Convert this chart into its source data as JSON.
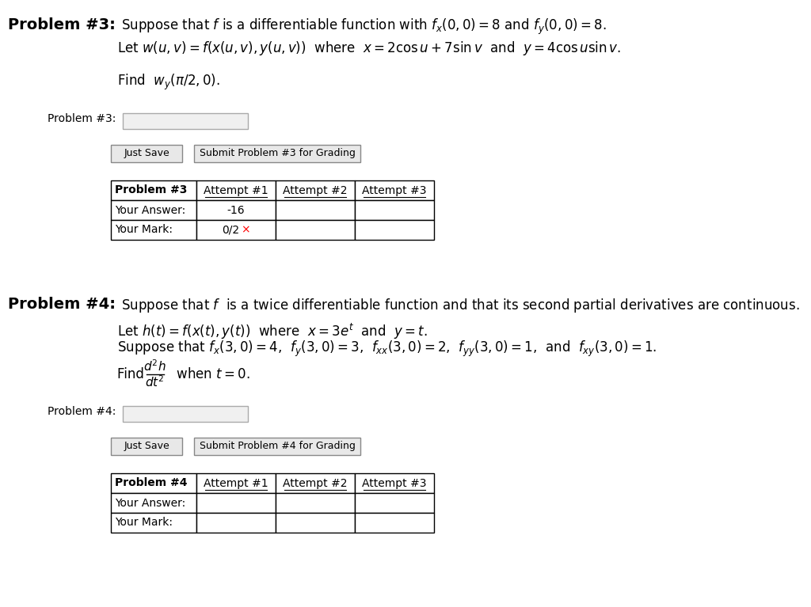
{
  "bg_color": "#ffffff",
  "fig_width": 10.24,
  "fig_height": 7.67,
  "dpi": 100,
  "problem3": {
    "header_bold": "Problem #3:",
    "header_text": " Suppose that $f$ is a differentiable function with $f_x(0,0) = 8$ and $f_y(0,0) = 8$.",
    "line2": "Let $w(u, v) = f(x(u, v), y(u, v))$  where  $x = 2\\cos u + 7\\sin v$  and  $y = 4\\cos u \\sin v$.",
    "line3": "Find  $w_y(\\pi/2, 0)$.",
    "label": "Problem #3:",
    "buttons": [
      "Just Save",
      "Submit Problem #3 for Grading"
    ],
    "table_header": [
      "Problem #3",
      "Attempt #1",
      "Attempt #2",
      "Attempt #3"
    ],
    "row1": [
      "Your Answer:",
      "-16",
      "",
      ""
    ],
    "row2_prefix": "0/2",
    "row2_suffix": "×"
  },
  "problem4": {
    "header_bold": "Problem #4:",
    "header_text": " Suppose that $f$  is a twice differentiable function and that its second partial derivatives are continuous.",
    "line2": "Let $h(t) = f(x(t), y(t))$  where  $x = 3e^t$  and  $y = t$.",
    "line3": "Suppose that $f_x(3,0) = 4$,  $f_y(3,0) = 3$,  $f_{xx}(3,0) = 2$,  $f_{yy}(3,0) = 1$,  and  $f_{xy}(3,0) = 1$.",
    "line4_prefix": "Find  ",
    "line4_frac_num": "d^{2}h",
    "line4_frac_den": "dt^{2}",
    "line4_suffix": "  when $t = 0$.",
    "label": "Problem #4:",
    "buttons": [
      "Just Save",
      "Submit Problem #4 for Grading"
    ],
    "table_header": [
      "Problem #4",
      "Attempt #1",
      "Attempt #2",
      "Attempt #3"
    ],
    "row1": [
      "Your Answer:",
      "",
      "",
      ""
    ],
    "row2": [
      "Your Mark:",
      "",
      "",
      ""
    ]
  }
}
